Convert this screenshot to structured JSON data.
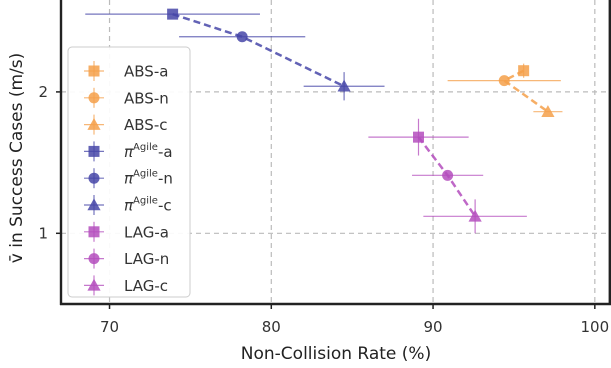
{
  "chart_data": {
    "type": "scatter",
    "xlabel": "Non-Collision Rate (%)",
    "ylabel": "v̄ in Success Cases (m/s)",
    "xlim": [
      67,
      101
    ],
    "ylim": [
      0.5,
      2.65
    ],
    "x_ticks": [
      70,
      80,
      90,
      100
    ],
    "x_tick_labels": [
      "70",
      "80",
      "90",
      "100"
    ],
    "y_ticks": [
      1,
      2
    ],
    "y_tick_labels": [
      "1",
      "2"
    ],
    "grid": true,
    "legend_position": "left",
    "groups": [
      {
        "name": "ABS",
        "color": "#f5a04a",
        "series": [
          {
            "label_base": "ABS",
            "label_sup": "",
            "label_suffix": "-a",
            "marker": "square",
            "x": 95.6,
            "y": 2.15,
            "xerr": 0,
            "yerr": 0.05
          },
          {
            "label_base": "ABS",
            "label_sup": "",
            "label_suffix": "-n",
            "marker": "circle",
            "x": 94.4,
            "y": 2.08,
            "xerr": 3.5,
            "yerr": 0
          },
          {
            "label_base": "ABS",
            "label_sup": "",
            "label_suffix": "-c",
            "marker": "triangle",
            "x": 97.1,
            "y": 1.86,
            "xerr": 0.9,
            "yerr": 0
          }
        ]
      },
      {
        "name": "πAgile",
        "color": "#4747a8",
        "series": [
          {
            "label_base": "π",
            "label_sup": "Agile",
            "label_suffix": "-a",
            "marker": "square",
            "x": 73.9,
            "y": 2.55,
            "xerr": 5.4,
            "yerr": 0
          },
          {
            "label_base": "π",
            "label_sup": "Agile",
            "label_suffix": "-n",
            "marker": "circle",
            "x": 78.2,
            "y": 2.39,
            "xerr": 3.9,
            "yerr": 0
          },
          {
            "label_base": "π",
            "label_sup": "Agile",
            "label_suffix": "-c",
            "marker": "triangle",
            "x": 84.5,
            "y": 2.04,
            "xerr": 2.5,
            "yerr": 0.1
          }
        ]
      },
      {
        "name": "LAG",
        "color": "#b44dbd",
        "series": [
          {
            "label_base": "LAG",
            "label_sup": "",
            "label_suffix": "-a",
            "marker": "square",
            "x": 89.1,
            "y": 1.68,
            "xerr": 3.1,
            "yerr": 0.13
          },
          {
            "label_base": "LAG",
            "label_sup": "",
            "label_suffix": "-n",
            "marker": "circle",
            "x": 90.9,
            "y": 1.41,
            "xerr": 2.2,
            "yerr": 0
          },
          {
            "label_base": "LAG",
            "label_sup": "",
            "label_suffix": "-c",
            "marker": "triangle",
            "x": 92.6,
            "y": 1.12,
            "xerr": 3.2,
            "yerr": 0.12
          }
        ]
      }
    ]
  }
}
